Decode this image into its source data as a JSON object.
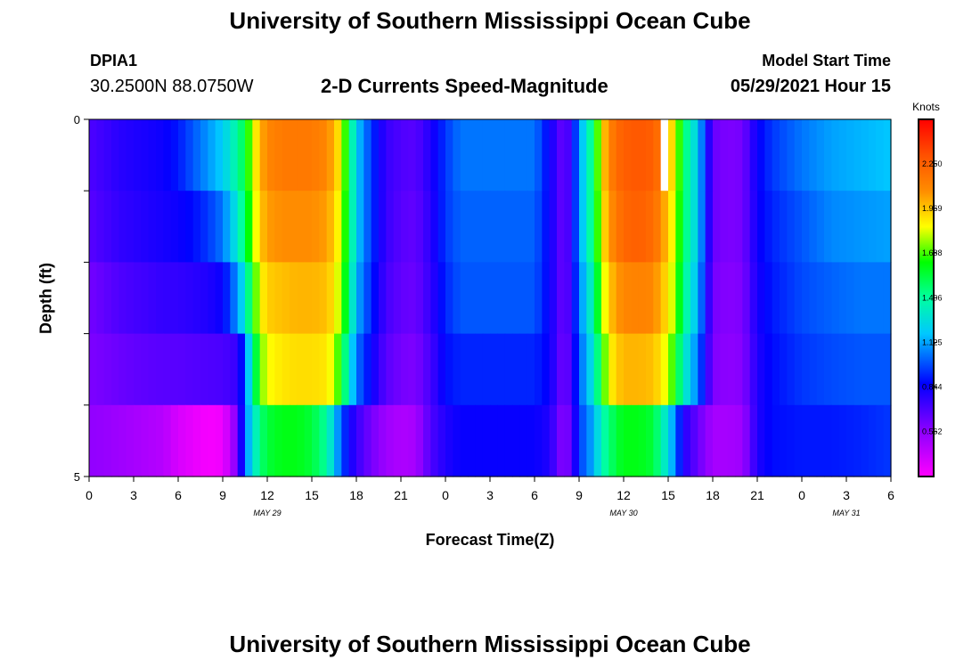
{
  "header": {
    "title": "University of Southern Mississippi Ocean Cube",
    "station_id": "DPIA1",
    "coordinates": "30.2500N  88.0750W",
    "subtitle": "2-D Currents Speed-Magnitude",
    "model_start_label": "Model Start Time",
    "model_start_value": "05/29/2021 Hour 15"
  },
  "footer": {
    "title": "University of Southern Mississippi Ocean Cube"
  },
  "chart_data": {
    "type": "heatmap",
    "title": "2-D Currents Speed-Magnitude",
    "xlabel": "Forecast Time(Z)",
    "ylabel": "Depth (ft)",
    "ylim": [
      0,
      5
    ],
    "y_ticks": [
      "0",
      "5"
    ],
    "x_range_hours": [
      0,
      54
    ],
    "x_tick_labels": [
      "0",
      "3",
      "6",
      "9",
      "12",
      "15",
      "18",
      "21",
      "0",
      "3",
      "6",
      "9",
      "12",
      "15",
      "18",
      "21",
      "0",
      "3",
      "6"
    ],
    "date_labels": [
      {
        "text": "MAY 29",
        "hour": 12
      },
      {
        "text": "MAY 30",
        "hour": 36
      },
      {
        "text": "MAY 31",
        "hour": 51
      }
    ],
    "colorbar": {
      "unit": "Knots",
      "range": [
        0.28,
        2.53
      ],
      "tick_labels": [
        "2.250",
        "1.969",
        "1.688",
        "1.406",
        "1.125",
        "0.844",
        "0.562"
      ],
      "tick_values": [
        2.25,
        1.969,
        1.688,
        1.406,
        1.125,
        0.844,
        0.562
      ]
    },
    "depth_levels": 5,
    "time_step_hours": 0.5,
    "time_keyframes_hours": [
      0,
      1,
      2,
      3,
      4,
      5,
      6,
      7,
      8,
      9,
      10,
      10.5,
      11,
      11.5,
      12,
      13,
      14,
      15,
      16,
      16.5,
      17,
      17.5,
      18,
      19,
      20,
      21,
      22,
      23,
      24,
      25,
      27,
      30,
      31,
      32,
      32.5,
      33,
      34,
      34.5,
      35,
      35.5,
      36,
      37,
      38,
      38.5,
      39,
      39.5,
      40,
      41,
      42,
      43,
      44,
      45,
      46,
      48,
      50,
      52,
      54
    ],
    "speed_keyframes_knots": [
      [
        0.7,
        0.74,
        0.78,
        0.8,
        0.82,
        0.84,
        0.9,
        1.0,
        1.1,
        1.2,
        1.4,
        1.55,
        1.8,
        2.0,
        2.1,
        2.15,
        2.15,
        2.15,
        2.1,
        2.0,
        1.85,
        1.5,
        1.2,
        0.95,
        0.75,
        0.7,
        0.68,
        0.8,
        0.95,
        1.05,
        1.05,
        1.05,
        0.85,
        0.62,
        0.8,
        1.1,
        1.5,
        1.9,
        2.1,
        2.2,
        2.25,
        2.28,
        2.25,
        2.15,
        2.0,
        1.85,
        1.5,
        1.2,
        0.65,
        0.6,
        0.62,
        0.85,
        0.95,
        1.05,
        1.12,
        1.15,
        1.18
      ],
      [
        0.68,
        0.72,
        0.76,
        0.78,
        0.8,
        0.82,
        0.84,
        0.88,
        0.95,
        1.05,
        1.3,
        1.5,
        1.75,
        1.95,
        2.05,
        2.08,
        2.08,
        2.08,
        2.05,
        1.95,
        1.8,
        1.5,
        1.2,
        0.95,
        0.75,
        0.68,
        0.66,
        0.78,
        0.95,
        1.02,
        1.02,
        1.02,
        0.85,
        0.62,
        0.8,
        1.1,
        1.5,
        1.85,
        2.05,
        2.15,
        2.22,
        2.25,
        2.2,
        2.1,
        1.95,
        1.8,
        1.5,
        1.2,
        0.65,
        0.6,
        0.62,
        0.84,
        0.92,
        1.0,
        1.08,
        1.1,
        1.12
      ],
      [
        0.62,
        0.66,
        0.7,
        0.72,
        0.74,
        0.76,
        0.76,
        0.78,
        0.8,
        0.85,
        1.1,
        1.3,
        1.6,
        1.85,
        1.95,
        1.98,
        2.0,
        2.0,
        1.98,
        1.9,
        1.75,
        1.45,
        1.15,
        0.92,
        0.72,
        0.66,
        0.64,
        0.76,
        0.92,
        1.0,
        1.0,
        1.0,
        0.85,
        0.62,
        0.78,
        1.05,
        1.4,
        1.75,
        1.95,
        2.05,
        2.1,
        2.12,
        2.1,
        2.0,
        1.9,
        1.75,
        1.45,
        1.15,
        0.62,
        0.58,
        0.6,
        0.82,
        0.9,
        0.98,
        1.02,
        1.05,
        1.05
      ],
      [
        0.6,
        0.62,
        0.64,
        0.66,
        0.67,
        0.68,
        0.68,
        0.69,
        0.7,
        0.71,
        0.75,
        1.0,
        1.4,
        1.7,
        1.85,
        1.9,
        1.92,
        1.92,
        1.9,
        1.8,
        1.6,
        1.3,
        1.05,
        0.85,
        0.68,
        0.62,
        0.6,
        0.72,
        0.88,
        0.92,
        0.92,
        0.92,
        0.85,
        0.6,
        0.75,
        1.0,
        1.3,
        1.6,
        1.85,
        1.95,
        2.0,
        2.0,
        1.98,
        1.9,
        1.8,
        1.6,
        1.35,
        1.05,
        0.6,
        0.56,
        0.58,
        0.8,
        0.88,
        0.95,
        0.98,
        1.0,
        1.0
      ],
      [
        0.55,
        0.54,
        0.52,
        0.5,
        0.48,
        0.46,
        0.38,
        0.34,
        0.3,
        0.32,
        0.6,
        1.05,
        1.25,
        1.45,
        1.55,
        1.6,
        1.6,
        1.55,
        1.4,
        1.2,
        1.0,
        0.85,
        0.75,
        0.62,
        0.52,
        0.48,
        0.5,
        0.7,
        0.8,
        0.85,
        0.85,
        0.85,
        0.8,
        0.55,
        0.7,
        0.95,
        1.15,
        1.35,
        1.45,
        1.55,
        1.6,
        1.6,
        1.55,
        1.4,
        1.25,
        1.05,
        0.8,
        0.65,
        0.5,
        0.5,
        0.52,
        0.8,
        0.88,
        0.9,
        0.9,
        0.92,
        0.95
      ]
    ],
    "missing_cells": [
      {
        "hour": 38.5,
        "depth_level": 0
      }
    ]
  }
}
